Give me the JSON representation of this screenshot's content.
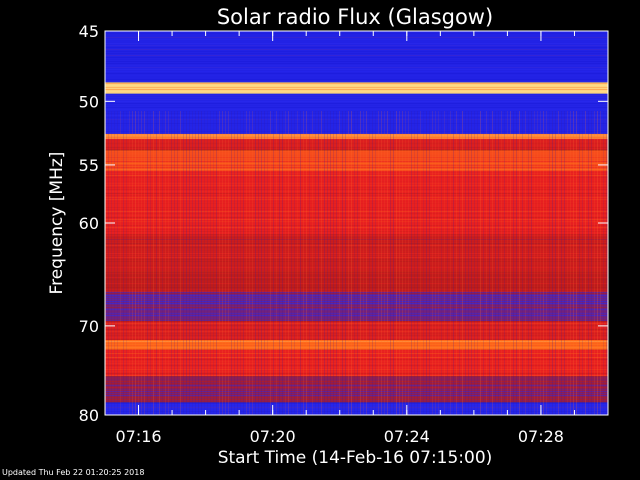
{
  "footer": {
    "updated": "Updated Thu Feb 22 01:20:25 2018"
  },
  "chart_data": {
    "type": "heatmap",
    "title": "Solar radio Flux (Glasgow)",
    "xlabel": "Start Time (14-Feb-16 07:15:00)",
    "ylabel": "Frequency [MHz]",
    "xlim_minutes": [
      15.0,
      30.0
    ],
    "ylim": [
      80,
      45
    ],
    "y_scale": "log",
    "y_ticks": [
      45,
      50,
      55,
      60,
      70,
      80
    ],
    "x_ticks": [
      {
        "label": "07:16",
        "minute": 16
      },
      {
        "label": "07:20",
        "minute": 20
      },
      {
        "label": "07:24",
        "minute": 24
      },
      {
        "label": "07:28",
        "minute": 28
      }
    ],
    "colormap": [
      "#1a1ad8",
      "#2a2af0",
      "#b01a1a",
      "#e82020",
      "#ff6a1a",
      "#ffe08a"
    ],
    "bands": [
      {
        "f_start": 45.0,
        "f_end": 48.6,
        "intensity": 0.1
      },
      {
        "f_start": 48.6,
        "f_end": 49.4,
        "intensity": 0.98
      },
      {
        "f_start": 49.4,
        "f_end": 52.5,
        "intensity": 0.12
      },
      {
        "f_start": 52.5,
        "f_end": 52.9,
        "intensity": 0.85
      },
      {
        "f_start": 52.9,
        "f_end": 53.8,
        "intensity": 0.55
      },
      {
        "f_start": 53.8,
        "f_end": 55.5,
        "intensity": 0.72
      },
      {
        "f_start": 55.5,
        "f_end": 61.0,
        "intensity": 0.6
      },
      {
        "f_start": 61.0,
        "f_end": 64.5,
        "intensity": 0.5
      },
      {
        "f_start": 64.5,
        "f_end": 66.5,
        "intensity": 0.45
      },
      {
        "f_start": 66.5,
        "f_end": 69.5,
        "intensity": 0.3
      },
      {
        "f_start": 69.5,
        "f_end": 71.5,
        "intensity": 0.55
      },
      {
        "f_start": 71.5,
        "f_end": 72.5,
        "intensity": 0.8
      },
      {
        "f_start": 72.5,
        "f_end": 75.5,
        "intensity": 0.6
      },
      {
        "f_start": 75.5,
        "f_end": 78.5,
        "intensity": 0.35
      },
      {
        "f_start": 78.5,
        "f_end": 80.0,
        "intensity": 0.15
      }
    ]
  }
}
